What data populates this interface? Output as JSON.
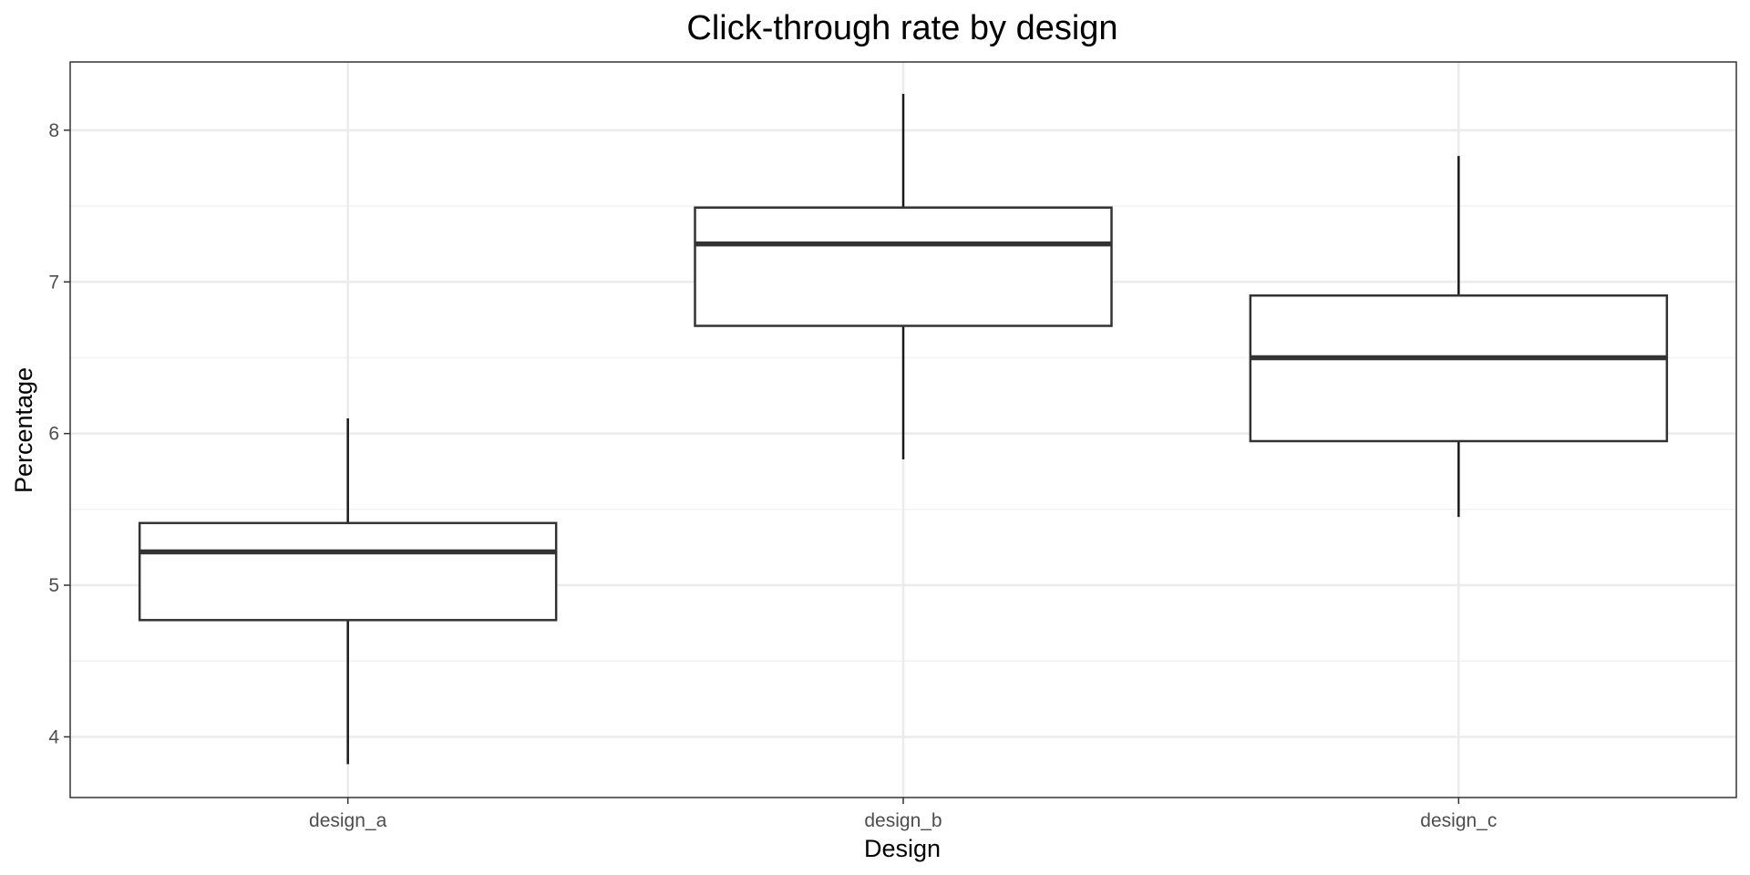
{
  "chart_data": {
    "type": "boxplot",
    "title": "Click-through rate by design",
    "xlabel": "Design",
    "ylabel": "Percentage",
    "categories": [
      "design_a",
      "design_b",
      "design_c"
    ],
    "boxes": [
      {
        "category": "design_a",
        "whisker_low": 3.82,
        "q1": 4.77,
        "median": 5.22,
        "q3": 5.41,
        "whisker_high": 6.1
      },
      {
        "category": "design_b",
        "whisker_low": 5.83,
        "q1": 6.71,
        "median": 7.25,
        "q3": 7.49,
        "whisker_high": 8.24
      },
      {
        "category": "design_c",
        "whisker_low": 5.45,
        "q1": 5.95,
        "median": 6.5,
        "q3": 6.91,
        "whisker_high": 7.83
      }
    ],
    "ylim": [
      3.6,
      8.45
    ],
    "y_ticks": [
      4,
      5,
      6,
      7,
      8
    ],
    "y_tick_labels": [
      "4",
      "5",
      "6",
      "7",
      "8"
    ],
    "grid": true,
    "legend": "none",
    "colors": {
      "box_fill": "#ffffff",
      "box_stroke": "#333333",
      "whisker": "#1a1a1a",
      "grid_major": "#ebebeb",
      "grid_minor": "#f2f2f2",
      "panel_border": "#333333"
    }
  }
}
